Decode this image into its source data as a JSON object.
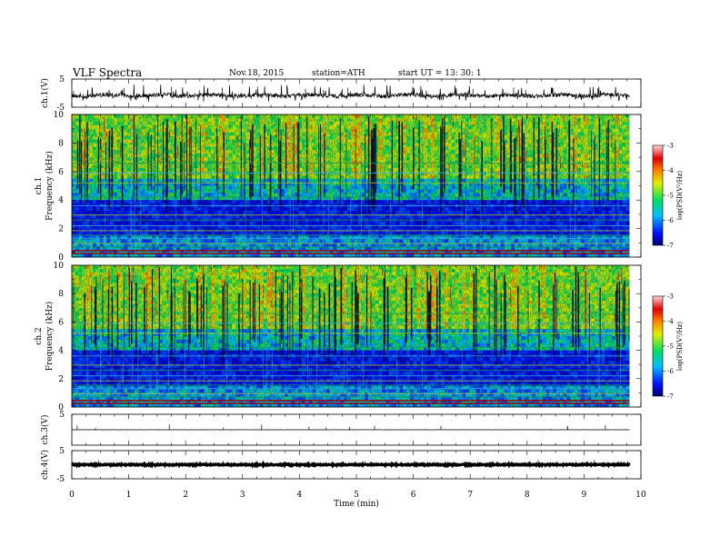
{
  "header": {
    "title": "VLF  Spectra",
    "date": "Nov.18, 2015",
    "station": "station=ATH",
    "start": "start  UT  =   13: 30: 1"
  },
  "chart_data": [
    {
      "type": "line",
      "panel": "ch1-waveform",
      "ylabel": "ch.1(V)",
      "ylim": [
        -5,
        5
      ],
      "yticks": [
        "5",
        "-5"
      ],
      "baseline": -0.8
    },
    {
      "type": "heatmap",
      "panel": "ch1-spectrogram",
      "ylabel_top": "ch.1",
      "ylabel": "Frequency  (kHz)",
      "ylim": [
        0,
        10
      ],
      "yticks": [
        "0",
        "2",
        "4",
        "6",
        "8",
        "10"
      ],
      "colorbar": {
        "label": "log(PSD(V²/Hz)",
        "range": [
          -7,
          -3
        ],
        "ticks": [
          "-3",
          "-4",
          "-5",
          "-6",
          "-7"
        ]
      }
    },
    {
      "type": "heatmap",
      "panel": "ch2-spectrogram",
      "ylabel_top": "ch.2",
      "ylabel": "Frequency  (kHz)",
      "ylim": [
        0,
        10
      ],
      "yticks": [
        "0",
        "2",
        "4",
        "6",
        "8",
        "10"
      ],
      "colorbar": {
        "label": "log(PSD(V²/Hz)",
        "range": [
          -7,
          -3
        ],
        "ticks": [
          "-3",
          "-4",
          "-5",
          "-6",
          "-7"
        ]
      }
    },
    {
      "type": "line",
      "panel": "ch3-waveform",
      "ylabel": "ch.3(V)",
      "ylim": [
        -5,
        5
      ],
      "yticks": [
        "5"
      ],
      "baseline": 0
    },
    {
      "type": "line",
      "panel": "ch4-waveform",
      "ylabel": "ch.4(V)",
      "ylim": [
        -5,
        5
      ],
      "yticks": [
        "5",
        "-5"
      ],
      "baseline": 0
    }
  ],
  "xaxis": {
    "label": "Time  (min)",
    "range": [
      0,
      10
    ],
    "data_end": 9.8,
    "ticks": [
      "0",
      "1",
      "2",
      "3",
      "4",
      "5",
      "6",
      "7",
      "8",
      "9",
      "10"
    ]
  }
}
